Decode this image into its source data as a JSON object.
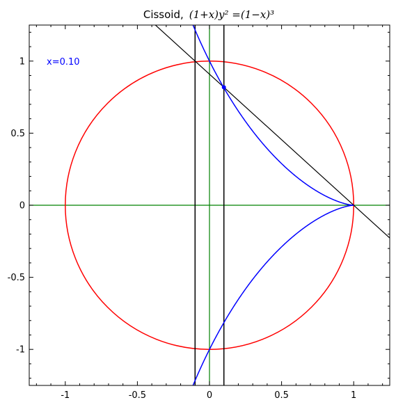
{
  "chart_data": {
    "type": "line",
    "title": "Cissoid,",
    "title_math": "(1+x)y² =(1−x)³",
    "xlabel": "",
    "ylabel": "",
    "xlim": [
      -1.25,
      1.25
    ],
    "ylim": [
      -1.25,
      1.25
    ],
    "x_ticks": [
      -1,
      -0.5,
      0,
      0.5,
      1
    ],
    "x_tick_labels": [
      "-1",
      "-0.5",
      "0",
      "0.5",
      "1"
    ],
    "y_ticks": [
      -1,
      -0.5,
      0,
      0.5,
      1
    ],
    "y_tick_labels": [
      "-1",
      "-0.5",
      "0",
      "0.5",
      "1"
    ],
    "grid": false,
    "annotation": {
      "text": "x=0.10",
      "color": "#0000ff"
    },
    "parameter_x": 0.1,
    "circle": {
      "center": [
        0,
        0
      ],
      "radius": 1,
      "color": "#ff0000"
    },
    "cissoid": {
      "equation": "(1+x)y^2=(1-x)^3",
      "color": "#0000ff",
      "x_range": [
        -0.1,
        1
      ]
    },
    "axis_lines": {
      "color": "#008000",
      "x": 0,
      "y": 0
    },
    "vertical_lines": [
      {
        "x": -0.1,
        "color": "#000000"
      },
      {
        "x": 0.1,
        "color": "#000000"
      }
    ],
    "secant_line": {
      "through": [
        [
          1,
          0
        ],
        [
          0.1,
          0.8182
        ]
      ],
      "color": "#000000"
    },
    "marked_point": {
      "x": 0.1,
      "y": 0.8182,
      "color": "#0000ff"
    }
  }
}
